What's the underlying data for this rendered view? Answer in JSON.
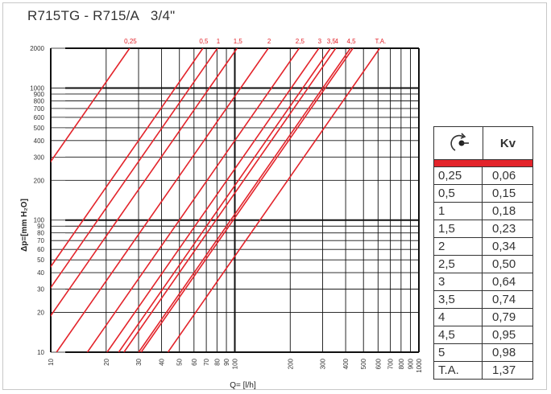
{
  "title": "R715TG - R715/A   3/4\"",
  "colors": {
    "curve": "#e3242b",
    "grid": "#111111",
    "accent": "#e3242b"
  },
  "chart_data": {
    "type": "line",
    "x_scale": "log",
    "y_scale": "log",
    "xlim": [
      10,
      1000
    ],
    "ylim": [
      10,
      2000
    ],
    "xlabel": "Q= [l/h]",
    "ylabel": "Δp=[mm H₂O]",
    "x_ticks": [
      "10",
      "20",
      "30",
      "40",
      "50",
      "60",
      "70",
      "80",
      "90",
      "100",
      "200",
      "300",
      "400",
      "500",
      "600",
      "700",
      "800",
      "900",
      "1000"
    ],
    "y_ticks": [
      "10",
      "20",
      "30",
      "40",
      "50",
      "60",
      "70",
      "80",
      "90",
      "100",
      "200",
      "300",
      "400",
      "500",
      "600",
      "700",
      "800",
      "900",
      "1000",
      "2000"
    ],
    "curve_labels": [
      "0,25",
      "0,5",
      "1",
      "1,5",
      "2",
      "2,5",
      "3",
      "3,5",
      "4",
      "4,5",
      "T.A."
    ],
    "series": [
      {
        "name": "0,25",
        "kv": 0.06
      },
      {
        "name": "0,5",
        "kv": 0.15
      },
      {
        "name": "1",
        "kv": 0.18
      },
      {
        "name": "1,5",
        "kv": 0.23
      },
      {
        "name": "2",
        "kv": 0.34
      },
      {
        "name": "2,5",
        "kv": 0.5
      },
      {
        "name": "3",
        "kv": 0.64
      },
      {
        "name": "3,5",
        "kv": 0.74
      },
      {
        "name": "4",
        "kv": 0.79
      },
      {
        "name": "4,5",
        "kv": 0.95
      },
      {
        "name": "5",
        "kv": 0.98
      },
      {
        "name": "T.A.",
        "kv": 1.37
      }
    ]
  },
  "kv_table": {
    "header_icon": "valve-turns-icon",
    "header_label": "Kv",
    "rows": [
      {
        "turns": "0,25",
        "kv": "0,06"
      },
      {
        "turns": "0,5",
        "kv": "0,15"
      },
      {
        "turns": "1",
        "kv": "0,18"
      },
      {
        "turns": "1,5",
        "kv": "0,23"
      },
      {
        "turns": "2",
        "kv": "0,34"
      },
      {
        "turns": "2,5",
        "kv": "0,50"
      },
      {
        "turns": "3",
        "kv": "0,64"
      },
      {
        "turns": "3,5",
        "kv": "0,74"
      },
      {
        "turns": "4",
        "kv": "0,79"
      },
      {
        "turns": "4,5",
        "kv": "0,95"
      },
      {
        "turns": "5",
        "kv": "0,98"
      },
      {
        "turns": "T.A.",
        "kv": "1,37"
      }
    ]
  }
}
